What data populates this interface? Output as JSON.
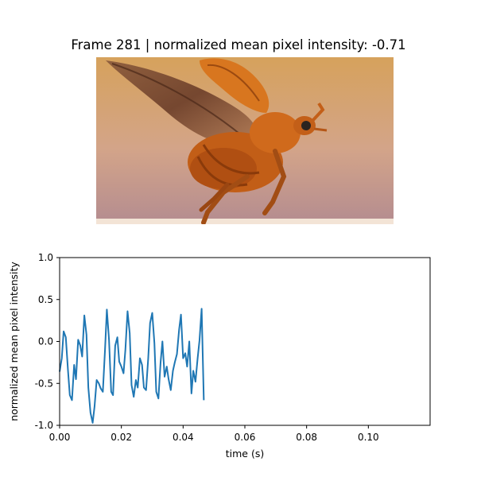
{
  "header": {
    "frame_label": "Frame",
    "frame_number": "281",
    "separator": "|",
    "metric_label": "normalized mean pixel intensity:",
    "metric_value": "-0.71"
  },
  "image": {
    "subject_icon": "flying-beetle-photo",
    "colors": {
      "sky_top": "#d4a05e",
      "sky_bottom": "#b88f8e",
      "beetle": "#c8641a",
      "wing": "#7a4a30",
      "ground": "#f2e6dc"
    }
  },
  "chart_data": {
    "type": "line",
    "title": "",
    "xlabel": "time (s)",
    "ylabel": "normalized mean pixel intensity",
    "xlim": [
      0,
      0.12
    ],
    "ylim": [
      -1.0,
      1.0
    ],
    "xticks": [
      "0.00",
      "0.02",
      "0.04",
      "0.06",
      "0.08",
      "0.10"
    ],
    "yticks": [
      "-1.0",
      "-0.5",
      "0.0",
      "0.5",
      "1.0"
    ],
    "grid": false,
    "series": [
      {
        "color": "#1f77b4",
        "x": [
          0.0,
          0.0007,
          0.0013,
          0.002,
          0.0027,
          0.0033,
          0.004,
          0.0047,
          0.0053,
          0.006,
          0.0067,
          0.0073,
          0.008,
          0.0087,
          0.0093,
          0.01,
          0.0107,
          0.0113,
          0.012,
          0.0127,
          0.0133,
          0.014,
          0.0147,
          0.0153,
          0.016,
          0.0167,
          0.0173,
          0.018,
          0.0187,
          0.0193,
          0.02,
          0.0207,
          0.0213,
          0.022,
          0.0227,
          0.0233,
          0.024,
          0.0247,
          0.0253,
          0.026,
          0.0267,
          0.0273,
          0.028,
          0.0287,
          0.0293,
          0.03,
          0.0307,
          0.0313,
          0.032,
          0.0327,
          0.0333,
          0.034,
          0.0347,
          0.0353,
          0.036,
          0.0367,
          0.0373,
          0.038,
          0.0387,
          0.0393,
          0.04,
          0.0407,
          0.0413,
          0.042,
          0.0427,
          0.0433,
          0.044,
          0.0447,
          0.0453,
          0.046,
          0.0467
        ],
        "y": [
          -0.36,
          -0.2,
          0.12,
          0.05,
          -0.34,
          -0.64,
          -0.7,
          -0.28,
          -0.45,
          0.02,
          -0.05,
          -0.18,
          0.31,
          0.08,
          -0.55,
          -0.85,
          -0.97,
          -0.78,
          -0.46,
          -0.5,
          -0.56,
          -0.6,
          -0.1,
          0.38,
          0.02,
          -0.6,
          -0.64,
          -0.05,
          0.05,
          -0.24,
          -0.3,
          -0.38,
          -0.1,
          0.36,
          0.1,
          -0.52,
          -0.66,
          -0.46,
          -0.55,
          -0.2,
          -0.28,
          -0.55,
          -0.58,
          -0.2,
          0.22,
          0.34,
          -0.02,
          -0.6,
          -0.68,
          -0.25,
          0.0,
          -0.42,
          -0.3,
          -0.45,
          -0.58,
          -0.35,
          -0.25,
          -0.15,
          0.14,
          0.32,
          -0.2,
          -0.14,
          -0.3,
          0.0,
          -0.62,
          -0.35,
          -0.48,
          -0.2,
          0.01,
          0.39,
          -0.7
        ]
      }
    ]
  }
}
